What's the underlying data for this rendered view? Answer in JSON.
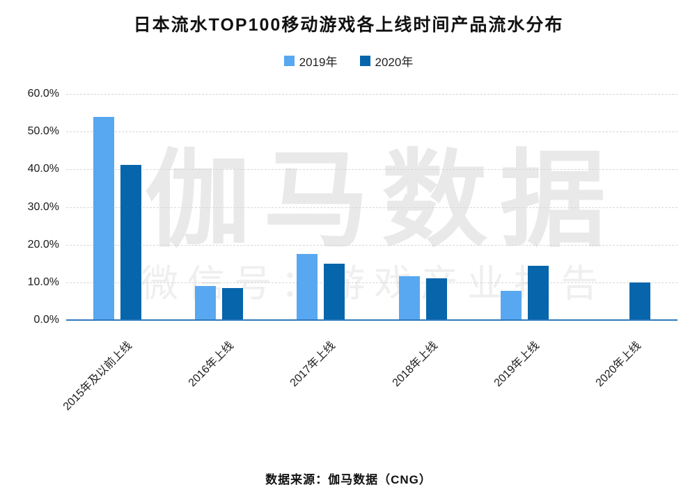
{
  "chart_data": {
    "type": "bar",
    "title": "日本流水TOP100移动游戏各上线时间产品流水分布",
    "categories": [
      "2015年及以前上线",
      "2016年上线",
      "2017年上线",
      "2018年上线",
      "2019年上线",
      "2020年上线"
    ],
    "series": [
      {
        "name": "2019年",
        "color": "#58a8f1",
        "values": [
          53.9,
          9.0,
          17.6,
          11.6,
          7.7,
          0
        ]
      },
      {
        "name": "2020年",
        "color": "#0765ab",
        "values": [
          41.2,
          8.5,
          15.0,
          11.0,
          14.4,
          10.0
        ]
      }
    ],
    "ylabel": "",
    "xlabel": "",
    "ylim": [
      0,
      60
    ],
    "yticks": [
      "60.0%",
      "50.0%",
      "40.0%",
      "30.0%",
      "20.0%",
      "10.0%",
      "0.0%"
    ],
    "grid": "horizontal-dashed",
    "legend_position": "top",
    "axis_line_color": "#2e79bc"
  },
  "watermark": {
    "brand": "伽马数据",
    "wechat": "微信号：游戏产业报告"
  },
  "footer": {
    "source": "数据来源：伽马数据（CNG）"
  }
}
